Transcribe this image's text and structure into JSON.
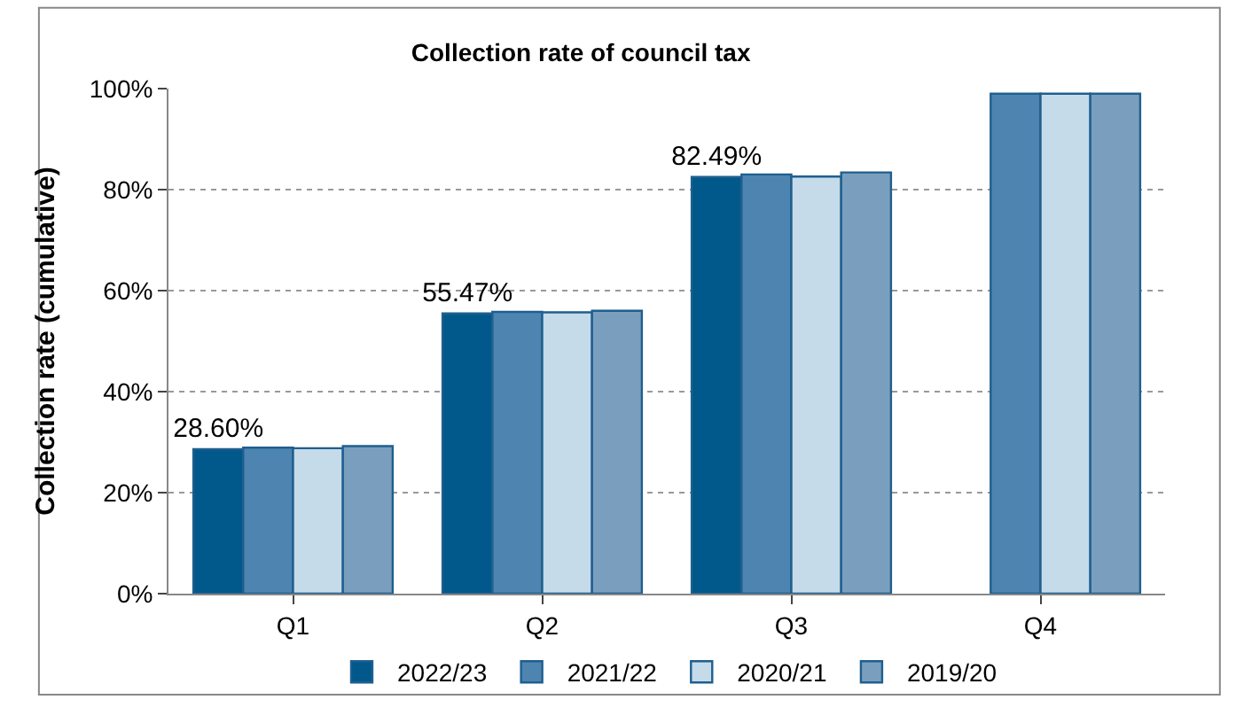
{
  "chart_data": {
    "type": "bar",
    "title": "Collection rate of council tax",
    "ylabel": "Collection rate (cumulative)",
    "categories": [
      "Q1",
      "Q2",
      "Q3",
      "Q4"
    ],
    "series": [
      {
        "name": "2022/23",
        "color": "#00588b",
        "values": [
          28.6,
          55.47,
          82.49,
          null
        ],
        "value_labels": [
          "28.60%",
          "55.47%",
          "82.49%",
          null
        ]
      },
      {
        "name": "2021/22",
        "color": "#4d85b0",
        "values": [
          28.9,
          55.8,
          83.0,
          99.0
        ]
      },
      {
        "name": "2020/21",
        "color": "#c6dbea",
        "values": [
          28.8,
          55.7,
          82.6,
          99.0
        ]
      },
      {
        "name": "2019/20",
        "color": "#7a9fbe",
        "values": [
          29.2,
          56.0,
          83.4,
          99.0
        ]
      }
    ],
    "ylim": [
      0,
      100
    ],
    "yticks": [
      {
        "value": 0,
        "label": "0%"
      },
      {
        "value": 20,
        "label": "20%"
      },
      {
        "value": 40,
        "label": "40%"
      },
      {
        "value": 60,
        "label": "60%"
      },
      {
        "value": 80,
        "label": "80%"
      },
      {
        "value": 100,
        "label": "100%"
      }
    ],
    "grid": "y",
    "legend": "bottom"
  }
}
